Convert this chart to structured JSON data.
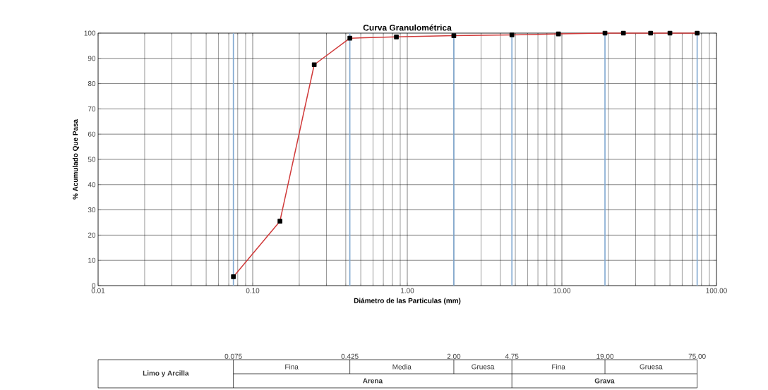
{
  "chart_data": {
    "type": "line",
    "title": "Curva Granulométrica",
    "xlabel": "Diámetro de las Particulas (mm)",
    "ylabel": "% Acumulado Que Pasa",
    "log": "x",
    "grid": true,
    "marker": "square",
    "line_style": "solid",
    "xlim": [
      0.01,
      100
    ],
    "ylim": [
      0,
      100
    ],
    "xticks": [
      0.01,
      {
        "value": 0.1,
        "label": "0.10"
      },
      {
        "value": 1,
        "label": "1.00"
      },
      {
        "value": 10,
        "label": "10.00"
      },
      {
        "value": 100,
        "label": "100.00"
      }
    ],
    "yticks": [
      0,
      10,
      20,
      30,
      40,
      50,
      60,
      70,
      80,
      90,
      100
    ],
    "x": [
      0.075,
      0.15,
      0.25,
      0.425,
      0.85,
      2,
      4.75,
      9.5,
      19,
      25,
      37.5,
      50,
      75
    ],
    "series": [
      {
        "color": "#d03a3a",
        "values": [
          3.5,
          25.5,
          87.5,
          98,
          98.5,
          99,
          99.3,
          99.7,
          100,
          100,
          100,
          100,
          100
        ]
      }
    ],
    "ref_lines": [
      {
        "axis": "x",
        "value": 0.075,
        "color": "#7fa7d0"
      },
      {
        "axis": "x",
        "value": 0.425,
        "color": "#7fa7d0"
      },
      {
        "axis": "x",
        "value": 2,
        "color": "#7fa7d0"
      },
      {
        "axis": "x",
        "value": 4.75,
        "color": "#7fa7d0"
      },
      {
        "axis": "x",
        "value": 19,
        "color": "#7fa7d0"
      },
      {
        "axis": "x",
        "value": 75,
        "color": "#7fa7d0"
      }
    ],
    "annotations": [
      "Limo y Arcilla",
      "Fina",
      "Media",
      "Gruesa",
      "Fina",
      "Gruesa",
      "Arena",
      "Grava",
      "0.075",
      "0.425",
      "2.00",
      "4.75",
      "19.00",
      "75.00"
    ]
  }
}
